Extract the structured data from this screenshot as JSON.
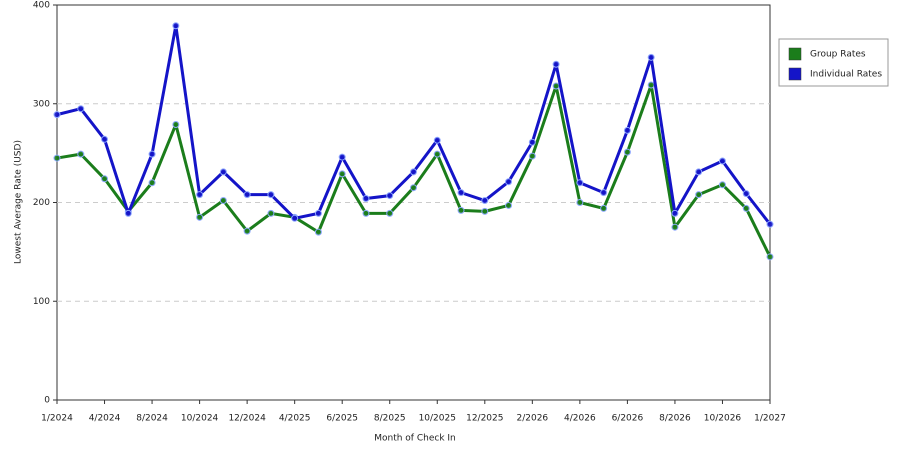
{
  "chart_data": {
    "type": "line",
    "x_label": "Month of Check In",
    "y_label": "Lowest Average Rate (USD)",
    "categories": [
      "1/2024",
      null,
      "4/2024",
      null,
      "8/2024",
      null,
      "10/2024",
      null,
      "12/2024",
      null,
      "4/2025",
      null,
      "6/2025",
      null,
      "8/2025",
      null,
      "10/2025",
      null,
      "12/2025",
      null,
      "2/2026",
      null,
      "4/2026",
      null,
      "6/2026",
      null,
      "8/2026",
      null,
      "10/2026",
      null,
      "1/2027"
    ],
    "series": [
      {
        "name": "Group Rates",
        "color": "#1b7d1b",
        "values": [
          245,
          249,
          224,
          191,
          220,
          279,
          185,
          202,
          171,
          189,
          185,
          170,
          229,
          189,
          189,
          215,
          249,
          192,
          191,
          197,
          247,
          318,
          200,
          194,
          251,
          319,
          175,
          208,
          218,
          194,
          145
        ]
      },
      {
        "name": "Individual Rates",
        "color": "#1414c8",
        "values": [
          289,
          295,
          264,
          189,
          249,
          379,
          208,
          231,
          208,
          208,
          184,
          189,
          246,
          204,
          207,
          231,
          263,
          210,
          202,
          221,
          261,
          340,
          220,
          210,
          273,
          347,
          189,
          231,
          242,
          209,
          178
        ]
      }
    ],
    "ylim": [
      0,
      400
    ],
    "yticks": [
      0,
      100,
      200,
      300,
      400
    ],
    "grid": true,
    "legend": "top-right"
  }
}
